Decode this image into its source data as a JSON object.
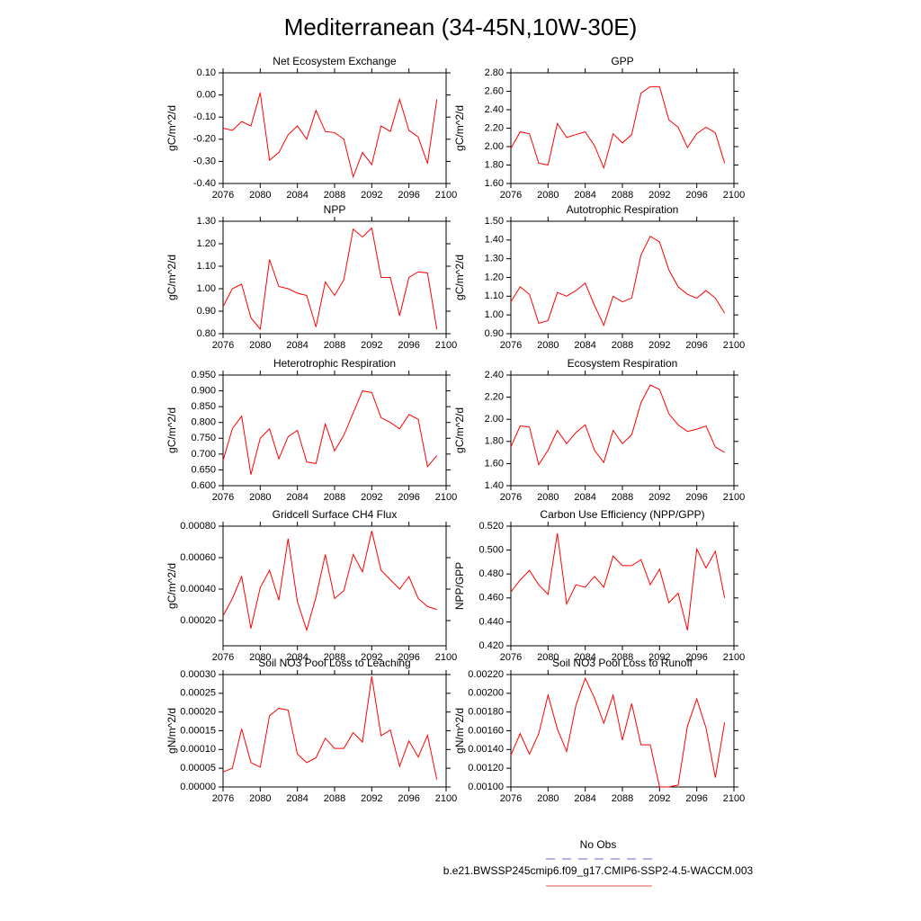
{
  "title": "Mediterranean (34-45N,10W-30E)",
  "legend": [
    {
      "name": "No Obs",
      "color": "#6666cc",
      "dashed": true
    },
    {
      "name": "b.e21.BWSSP245cmip6.f09_g17.CMIP6-SSP2-4.5-WACCM.003",
      "color": "#e05050",
      "dashed": false
    }
  ],
  "chart_data": [
    {
      "type": "line",
      "title": "Net Ecosystem Exchange",
      "ylabel": "gC/m^2/d",
      "color": "#ff0000",
      "x": [
        2076,
        2077,
        2078,
        2079,
        2080,
        2081,
        2082,
        2083,
        2084,
        2085,
        2086,
        2087,
        2088,
        2089,
        2090,
        2091,
        2092,
        2093,
        2094,
        2095,
        2096,
        2097,
        2098,
        2099
      ],
      "xlim": [
        2076,
        2100
      ],
      "xticks": [
        2076,
        2080,
        2084,
        2088,
        2092,
        2096,
        2100
      ],
      "values": [
        -0.15,
        -0.16,
        -0.12,
        -0.14,
        0.01,
        -0.295,
        -0.26,
        -0.18,
        -0.14,
        -0.2,
        -0.07,
        -0.165,
        -0.17,
        -0.2,
        -0.37,
        -0.26,
        -0.315,
        -0.14,
        -0.165,
        -0.02,
        -0.16,
        -0.19,
        -0.31,
        -0.02
      ],
      "ylim": [
        -0.4,
        0.1
      ],
      "yticks": [
        {
          "value": -0.4,
          "label": "-0.40"
        },
        {
          "value": -0.3,
          "label": "-0.30"
        },
        {
          "value": -0.2,
          "label": "-0.20"
        },
        {
          "value": -0.1,
          "label": "-0.10"
        },
        {
          "value": 0,
          "label": "0.00"
        },
        {
          "value": 0.1,
          "label": "0.10"
        }
      ]
    },
    {
      "type": "line",
      "title": "GPP",
      "ylabel": "gC/m^2/d",
      "color": "#ff0000",
      "x": [
        2076,
        2077,
        2078,
        2079,
        2080,
        2081,
        2082,
        2083,
        2084,
        2085,
        2086,
        2087,
        2088,
        2089,
        2090,
        2091,
        2092,
        2093,
        2094,
        2095,
        2096,
        2097,
        2098,
        2099
      ],
      "xlim": [
        2076,
        2100
      ],
      "xticks": [
        2076,
        2080,
        2084,
        2088,
        2092,
        2096,
        2100
      ],
      "values": [
        1.98,
        2.16,
        2.14,
        1.82,
        1.8,
        2.25,
        2.1,
        2.13,
        2.16,
        2.01,
        1.77,
        2.14,
        2.04,
        2.13,
        2.58,
        2.65,
        2.65,
        2.29,
        2.21,
        1.99,
        2.14,
        2.21,
        2.15,
        1.82
      ],
      "ylim": [
        1.6,
        2.8
      ],
      "yticks": [
        {
          "value": 1.6,
          "label": "1.60"
        },
        {
          "value": 1.8,
          "label": "1.80"
        },
        {
          "value": 2.0,
          "label": "2.00"
        },
        {
          "value": 2.2,
          "label": "2.20"
        },
        {
          "value": 2.4,
          "label": "2.40"
        },
        {
          "value": 2.6,
          "label": "2.60"
        },
        {
          "value": 2.8,
          "label": "2.80"
        }
      ]
    },
    {
      "type": "line",
      "title": "NPP",
      "ylabel": "gC/m^2/d",
      "color": "#ff0000",
      "x": [
        2076,
        2077,
        2078,
        2079,
        2080,
        2081,
        2082,
        2083,
        2084,
        2085,
        2086,
        2087,
        2088,
        2089,
        2090,
        2091,
        2092,
        2093,
        2094,
        2095,
        2096,
        2097,
        2098,
        2099
      ],
      "xlim": [
        2076,
        2100
      ],
      "xticks": [
        2076,
        2080,
        2084,
        2088,
        2092,
        2096,
        2100
      ],
      "values": [
        0.92,
        1.0,
        1.02,
        0.87,
        0.82,
        1.13,
        1.01,
        1.0,
        0.98,
        0.97,
        0.83,
        1.03,
        0.97,
        1.04,
        1.265,
        1.23,
        1.27,
        1.05,
        1.05,
        0.88,
        1.05,
        1.075,
        1.07,
        0.82
      ],
      "ylim": [
        0.8,
        1.3
      ],
      "yticks": [
        {
          "value": 0.8,
          "label": "0.80"
        },
        {
          "value": 0.9,
          "label": "0.90"
        },
        {
          "value": 1.0,
          "label": "1.00"
        },
        {
          "value": 1.1,
          "label": "1.10"
        },
        {
          "value": 1.2,
          "label": "1.20"
        },
        {
          "value": 1.3,
          "label": "1.30"
        }
      ]
    },
    {
      "type": "line",
      "title": "Autotrophic Respiration",
      "ylabel": "gC/m^2/d",
      "color": "#ff0000",
      "x": [
        2076,
        2077,
        2078,
        2079,
        2080,
        2081,
        2082,
        2083,
        2084,
        2085,
        2086,
        2087,
        2088,
        2089,
        2090,
        2091,
        2092,
        2093,
        2094,
        2095,
        2096,
        2097,
        2098,
        2099
      ],
      "xlim": [
        2076,
        2100
      ],
      "xticks": [
        2076,
        2080,
        2084,
        2088,
        2092,
        2096,
        2100
      ],
      "values": [
        1.07,
        1.15,
        1.11,
        0.955,
        0.97,
        1.12,
        1.1,
        1.13,
        1.17,
        1.05,
        0.945,
        1.1,
        1.07,
        1.09,
        1.32,
        1.42,
        1.39,
        1.24,
        1.15,
        1.11,
        1.09,
        1.13,
        1.09,
        1.01
      ],
      "ylim": [
        0.9,
        1.5
      ],
      "yticks": [
        {
          "value": 0.9,
          "label": "0.90"
        },
        {
          "value": 1.0,
          "label": "1.00"
        },
        {
          "value": 1.1,
          "label": "1.10"
        },
        {
          "value": 1.2,
          "label": "1.20"
        },
        {
          "value": 1.3,
          "label": "1.30"
        },
        {
          "value": 1.4,
          "label": "1.40"
        },
        {
          "value": 1.5,
          "label": "1.50"
        }
      ]
    },
    {
      "type": "line",
      "title": "Heterotrophic Respiration",
      "ylabel": "gC/m^2/d",
      "color": "#ff0000",
      "x": [
        2076,
        2077,
        2078,
        2079,
        2080,
        2081,
        2082,
        2083,
        2084,
        2085,
        2086,
        2087,
        2088,
        2089,
        2090,
        2091,
        2092,
        2093,
        2094,
        2095,
        2096,
        2097,
        2098,
        2099
      ],
      "xlim": [
        2076,
        2100
      ],
      "xticks": [
        2076,
        2080,
        2084,
        2088,
        2092,
        2096,
        2100
      ],
      "values": [
        0.68,
        0.78,
        0.82,
        0.635,
        0.75,
        0.78,
        0.685,
        0.755,
        0.775,
        0.675,
        0.67,
        0.795,
        0.71,
        0.76,
        0.83,
        0.9,
        0.895,
        0.815,
        0.8,
        0.78,
        0.825,
        0.81,
        0.66,
        0.695
      ],
      "ylim": [
        0.6,
        0.95
      ],
      "yticks": [
        {
          "value": 0.6,
          "label": "0.600"
        },
        {
          "value": 0.65,
          "label": "0.650"
        },
        {
          "value": 0.7,
          "label": "0.700"
        },
        {
          "value": 0.75,
          "label": "0.750"
        },
        {
          "value": 0.8,
          "label": "0.800"
        },
        {
          "value": 0.85,
          "label": "0.850"
        },
        {
          "value": 0.9,
          "label": "0.900"
        },
        {
          "value": 0.95,
          "label": "0.950"
        }
      ]
    },
    {
      "type": "line",
      "title": "Ecosystem Respiration",
      "ylabel": "gC/m^2/d",
      "color": "#ff0000",
      "x": [
        2076,
        2077,
        2078,
        2079,
        2080,
        2081,
        2082,
        2083,
        2084,
        2085,
        2086,
        2087,
        2088,
        2089,
        2090,
        2091,
        2092,
        2093,
        2094,
        2095,
        2096,
        2097,
        2098,
        2099
      ],
      "xlim": [
        2076,
        2100
      ],
      "xticks": [
        2076,
        2080,
        2084,
        2088,
        2092,
        2096,
        2100
      ],
      "values": [
        1.75,
        1.94,
        1.93,
        1.59,
        1.72,
        1.9,
        1.78,
        1.88,
        1.95,
        1.72,
        1.61,
        1.9,
        1.78,
        1.86,
        2.15,
        2.31,
        2.27,
        2.05,
        1.95,
        1.89,
        1.91,
        1.94,
        1.75,
        1.7
      ],
      "ylim": [
        1.4,
        2.4
      ],
      "yticks": [
        {
          "value": 1.4,
          "label": "1.40"
        },
        {
          "value": 1.6,
          "label": "1.60"
        },
        {
          "value": 1.8,
          "label": "1.80"
        },
        {
          "value": 2.0,
          "label": "2.00"
        },
        {
          "value": 2.2,
          "label": "2.20"
        },
        {
          "value": 2.4,
          "label": "2.40"
        }
      ]
    },
    {
      "type": "line",
      "title": "Gridcell Surface CH4 Flux",
      "ylabel": "gC/m^2/d",
      "color": "#ff0000",
      "x": [
        2076,
        2077,
        2078,
        2079,
        2080,
        2081,
        2082,
        2083,
        2084,
        2085,
        2086,
        2087,
        2088,
        2089,
        2090,
        2091,
        2092,
        2093,
        2094,
        2095,
        2096,
        2097,
        2098,
        2099
      ],
      "xlim": [
        2076,
        2100
      ],
      "xticks": [
        2076,
        2080,
        2084,
        2088,
        2092,
        2096,
        2100
      ],
      "values": [
        0.00023,
        0.00034,
        0.00048,
        0.00015,
        0.00041,
        0.00052,
        0.00033,
        0.00072,
        0.00032,
        0.00014,
        0.00035,
        0.00062,
        0.00034,
        0.00039,
        0.00062,
        0.00051,
        0.00077,
        0.00052,
        0.00046,
        0.0004,
        0.00048,
        0.00034,
        0.00029,
        0.00027
      ],
      "ylim": [
        4e-05,
        0.0008
      ],
      "yticks": [
        {
          "value": 0.0002,
          "label": "0.00020"
        },
        {
          "value": 0.0004,
          "label": "0.00040"
        },
        {
          "value": 0.0006,
          "label": "0.00060"
        },
        {
          "value": 0.0008,
          "label": "0.00080"
        }
      ]
    },
    {
      "type": "line",
      "title": "Carbon Use Efficiency (NPP/GPP)",
      "ylabel": "NPP/GPP",
      "color": "#ff0000",
      "x": [
        2076,
        2077,
        2078,
        2079,
        2080,
        2081,
        2082,
        2083,
        2084,
        2085,
        2086,
        2087,
        2088,
        2089,
        2090,
        2091,
        2092,
        2093,
        2094,
        2095,
        2096,
        2097,
        2098,
        2099
      ],
      "xlim": [
        2076,
        2100
      ],
      "xticks": [
        2076,
        2080,
        2084,
        2088,
        2092,
        2096,
        2100
      ],
      "values": [
        0.465,
        0.475,
        0.483,
        0.471,
        0.463,
        0.514,
        0.455,
        0.471,
        0.469,
        0.478,
        0.469,
        0.495,
        0.487,
        0.487,
        0.492,
        0.471,
        0.484,
        0.456,
        0.464,
        0.433,
        0.501,
        0.485,
        0.499,
        0.46
      ],
      "ylim": [
        0.42,
        0.52
      ],
      "yticks": [
        {
          "value": 0.42,
          "label": "0.420"
        },
        {
          "value": 0.44,
          "label": "0.440"
        },
        {
          "value": 0.46,
          "label": "0.460"
        },
        {
          "value": 0.48,
          "label": "0.480"
        },
        {
          "value": 0.5,
          "label": "0.500"
        },
        {
          "value": 0.52,
          "label": "0.520"
        }
      ]
    },
    {
      "type": "line",
      "title": "Soil NO3 Pool Loss to Leaching",
      "ylabel": "gN/m^2/d",
      "color": "#ff0000",
      "x": [
        2076,
        2077,
        2078,
        2079,
        2080,
        2081,
        2082,
        2083,
        2084,
        2085,
        2086,
        2087,
        2088,
        2089,
        2090,
        2091,
        2092,
        2093,
        2094,
        2095,
        2096,
        2097,
        2098,
        2099
      ],
      "xlim": [
        2076,
        2100
      ],
      "xticks": [
        2076,
        2080,
        2084,
        2088,
        2092,
        2096,
        2100
      ],
      "values": [
        4e-05,
        5e-05,
        0.000155,
        6.5e-05,
        5.3e-05,
        0.00019,
        0.00021,
        0.000205,
        8.8e-05,
        6.5e-05,
        7.8e-05,
        0.00013,
        0.000103,
        0.000103,
        0.000145,
        0.00012,
        0.000295,
        0.000137,
        0.000152,
        5.5e-05,
        0.000123,
        8e-05,
        0.000138,
        2e-05
      ],
      "ylim": [
        0,
        0.0003
      ],
      "yticks": [
        {
          "value": 0,
          "label": "0.00000"
        },
        {
          "value": 5e-05,
          "label": "0.00005"
        },
        {
          "value": 0.0001,
          "label": "0.00010"
        },
        {
          "value": 0.00015,
          "label": "0.00015"
        },
        {
          "value": 0.0002,
          "label": "0.00020"
        },
        {
          "value": 0.00025,
          "label": "0.00025"
        },
        {
          "value": 0.0003,
          "label": "0.00030"
        }
      ]
    },
    {
      "type": "line",
      "title": "Soil NO3 Pool Loss to Runoff",
      "ylabel": "gN/m^2/d",
      "color": "#ff0000",
      "x": [
        2076,
        2077,
        2078,
        2079,
        2080,
        2081,
        2082,
        2083,
        2084,
        2085,
        2086,
        2087,
        2088,
        2089,
        2090,
        2091,
        2092,
        2093,
        2094,
        2095,
        2096,
        2097,
        2098,
        2099
      ],
      "xlim": [
        2076,
        2100
      ],
      "xticks": [
        2076,
        2080,
        2084,
        2088,
        2092,
        2096,
        2100
      ],
      "values": [
        0.00134,
        0.00157,
        0.00135,
        0.00157,
        0.00198,
        0.00162,
        0.00138,
        0.00187,
        0.00216,
        0.00195,
        0.00168,
        0.00198,
        0.0015,
        0.00189,
        0.00145,
        0.00145,
        0.001,
        0.001,
        0.00102,
        0.00165,
        0.00194,
        0.00163,
        0.0011,
        0.00169
      ],
      "ylim": [
        0.001,
        0.0022
      ],
      "yticks": [
        {
          "value": 0.001,
          "label": "0.00100"
        },
        {
          "value": 0.0012,
          "label": "0.00120"
        },
        {
          "value": 0.0014,
          "label": "0.00140"
        },
        {
          "value": 0.0016,
          "label": "0.00160"
        },
        {
          "value": 0.0018,
          "label": "0.00180"
        },
        {
          "value": 0.002,
          "label": "0.00200"
        },
        {
          "value": 0.0022,
          "label": "0.00220"
        }
      ]
    }
  ]
}
